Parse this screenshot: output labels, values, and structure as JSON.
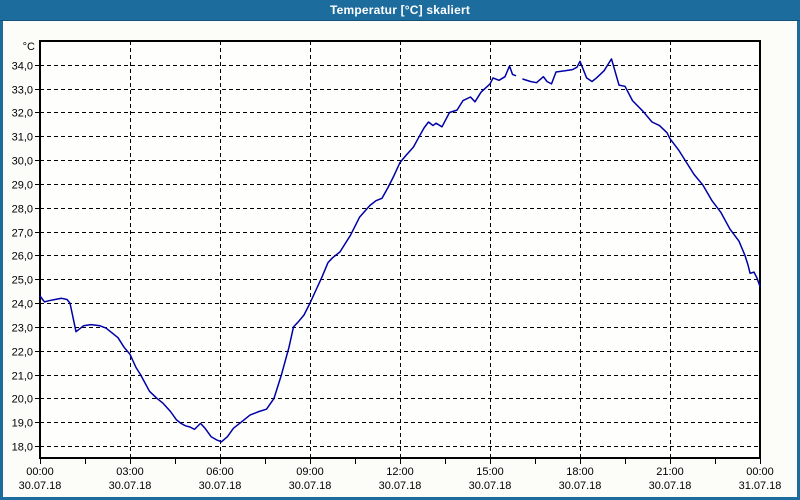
{
  "window": {
    "title": "Temperatur [°C] skaliert"
  },
  "colors": {
    "titlebar": "#1d6c9e",
    "titlebar_text": "#ffffff",
    "window_border": "#1d6c9e",
    "background": "#fcfdf8",
    "plot_background": "#fefefc",
    "grid": "#000000",
    "axis": "#000000",
    "line": "#0000a8",
    "label_text": "#000000"
  },
  "chart_data": {
    "type": "line",
    "title": "Temperatur [°C] skaliert",
    "y_unit_label": "°C",
    "xlabel": "",
    "ylabel": "°C",
    "grid": "dashed",
    "legend": "none",
    "ylim": [
      17.5,
      35.0
    ],
    "xlim_hours": [
      0,
      24
    ],
    "y_ticks": [
      {
        "value": 34,
        "label": "34,0"
      },
      {
        "value": 33,
        "label": "33,0"
      },
      {
        "value": 32,
        "label": "32,0"
      },
      {
        "value": 31,
        "label": "31,0"
      },
      {
        "value": 30,
        "label": "30,0"
      },
      {
        "value": 29,
        "label": "29,0"
      },
      {
        "value": 28,
        "label": "28,0"
      },
      {
        "value": 27,
        "label": "27,0"
      },
      {
        "value": 26,
        "label": "26,0"
      },
      {
        "value": 25,
        "label": "25,0"
      },
      {
        "value": 24,
        "label": "24,0"
      },
      {
        "value": 23,
        "label": "23,0"
      },
      {
        "value": 22,
        "label": "22,0"
      },
      {
        "value": 21,
        "label": "21,0"
      },
      {
        "value": 20,
        "label": "20,0"
      },
      {
        "value": 19,
        "label": "19,0"
      },
      {
        "value": 18,
        "label": "18,0"
      }
    ],
    "x_ticks": [
      {
        "hours": 0,
        "time": "00:00",
        "date": "30.07.18"
      },
      {
        "hours": 3,
        "time": "03:00",
        "date": "30.07.18"
      },
      {
        "hours": 6,
        "time": "06:00",
        "date": "30.07.18"
      },
      {
        "hours": 9,
        "time": "09:00",
        "date": "30.07.18"
      },
      {
        "hours": 12,
        "time": "12:00",
        "date": "30.07.18"
      },
      {
        "hours": 15,
        "time": "15:00",
        "date": "30.07.18"
      },
      {
        "hours": 18,
        "time": "18:00",
        "date": "30.07.18"
      },
      {
        "hours": 21,
        "time": "21:00",
        "date": "30.07.18"
      },
      {
        "hours": 24,
        "time": "00:00",
        "date": "31.07.18"
      }
    ],
    "x_grid_hours": [
      3,
      6,
      9,
      12,
      15,
      18,
      21
    ],
    "x_minor_tick_step_hours": 1.5,
    "series": [
      {
        "name": "Temperatur [°C]",
        "color": "#0000a8",
        "points": [
          [
            0,
            24.3
          ],
          [
            0.15,
            24.05
          ],
          [
            0.3,
            24.1
          ],
          [
            0.5,
            24.15
          ],
          [
            0.72,
            24.2
          ],
          [
            0.9,
            24.15
          ],
          [
            1.0,
            24.0
          ],
          [
            1.2,
            22.8
          ],
          [
            1.45,
            23.05
          ],
          [
            1.7,
            23.1
          ],
          [
            2.0,
            23.05
          ],
          [
            2.2,
            22.95
          ],
          [
            2.45,
            22.7
          ],
          [
            2.6,
            22.55
          ],
          [
            2.8,
            22.15
          ],
          [
            3.0,
            21.85
          ],
          [
            3.2,
            21.3
          ],
          [
            3.35,
            21.0
          ],
          [
            3.65,
            20.3
          ],
          [
            3.9,
            20.0
          ],
          [
            4.1,
            19.8
          ],
          [
            4.35,
            19.45
          ],
          [
            4.55,
            19.1
          ],
          [
            4.7,
            18.95
          ],
          [
            4.85,
            18.85
          ],
          [
            5.0,
            18.8
          ],
          [
            5.15,
            18.7
          ],
          [
            5.35,
            18.95
          ],
          [
            5.5,
            18.75
          ],
          [
            5.7,
            18.4
          ],
          [
            5.9,
            18.25
          ],
          [
            6.05,
            18.18
          ],
          [
            6.25,
            18.4
          ],
          [
            6.45,
            18.75
          ],
          [
            6.7,
            19.0
          ],
          [
            7.0,
            19.3
          ],
          [
            7.3,
            19.45
          ],
          [
            7.55,
            19.55
          ],
          [
            7.8,
            20.0
          ],
          [
            8.05,
            21.0
          ],
          [
            8.3,
            22.15
          ],
          [
            8.45,
            23.0
          ],
          [
            8.6,
            23.2
          ],
          [
            8.8,
            23.5
          ],
          [
            9.0,
            24.0
          ],
          [
            9.2,
            24.55
          ],
          [
            9.4,
            25.1
          ],
          [
            9.6,
            25.7
          ],
          [
            9.75,
            25.9
          ],
          [
            10.0,
            26.15
          ],
          [
            10.35,
            26.85
          ],
          [
            10.65,
            27.6
          ],
          [
            11.0,
            28.1
          ],
          [
            11.2,
            28.3
          ],
          [
            11.4,
            28.4
          ],
          [
            11.6,
            28.85
          ],
          [
            11.8,
            29.35
          ],
          [
            12.0,
            29.9
          ],
          [
            12.2,
            30.2
          ],
          [
            12.45,
            30.55
          ],
          [
            12.6,
            30.9
          ],
          [
            12.8,
            31.35
          ],
          [
            12.95,
            31.6
          ],
          [
            13.1,
            31.45
          ],
          [
            13.2,
            31.55
          ],
          [
            13.4,
            31.4
          ],
          [
            13.65,
            32.0
          ],
          [
            13.9,
            32.1
          ],
          [
            14.1,
            32.5
          ],
          [
            14.35,
            32.65
          ],
          [
            14.5,
            32.45
          ],
          [
            14.7,
            32.85
          ],
          [
            15.0,
            33.2
          ],
          [
            15.1,
            33.45
          ],
          [
            15.3,
            33.35
          ],
          [
            15.5,
            33.5
          ],
          [
            15.65,
            33.95
          ],
          [
            15.75,
            33.6
          ],
          [
            15.85,
            33.55
          ],
          [
            15.95,
            null
          ],
          [
            16.1,
            33.4
          ],
          [
            16.35,
            33.3
          ],
          [
            16.55,
            33.25
          ],
          [
            16.78,
            33.5
          ],
          [
            16.9,
            33.3
          ],
          [
            17.05,
            33.2
          ],
          [
            17.2,
            33.7
          ],
          [
            17.5,
            33.75
          ],
          [
            17.75,
            33.8
          ],
          [
            17.9,
            33.9
          ],
          [
            18.0,
            34.15
          ],
          [
            18.22,
            33.45
          ],
          [
            18.4,
            33.3
          ],
          [
            18.55,
            33.45
          ],
          [
            18.8,
            33.75
          ],
          [
            19.05,
            34.25
          ],
          [
            19.3,
            33.15
          ],
          [
            19.5,
            33.1
          ],
          [
            19.75,
            32.5
          ],
          [
            20.1,
            32.05
          ],
          [
            20.4,
            31.6
          ],
          [
            20.65,
            31.45
          ],
          [
            20.9,
            31.15
          ],
          [
            21.0,
            30.9
          ],
          [
            21.3,
            30.4
          ],
          [
            21.55,
            29.9
          ],
          [
            21.8,
            29.4
          ],
          [
            22.1,
            28.95
          ],
          [
            22.4,
            28.3
          ],
          [
            22.7,
            27.8
          ],
          [
            23.0,
            27.1
          ],
          [
            23.3,
            26.6
          ],
          [
            23.5,
            26.0
          ],
          [
            23.6,
            25.6
          ],
          [
            23.67,
            25.25
          ],
          [
            23.8,
            25.3
          ],
          [
            23.9,
            25.05
          ],
          [
            24.0,
            24.7
          ]
        ]
      }
    ]
  }
}
